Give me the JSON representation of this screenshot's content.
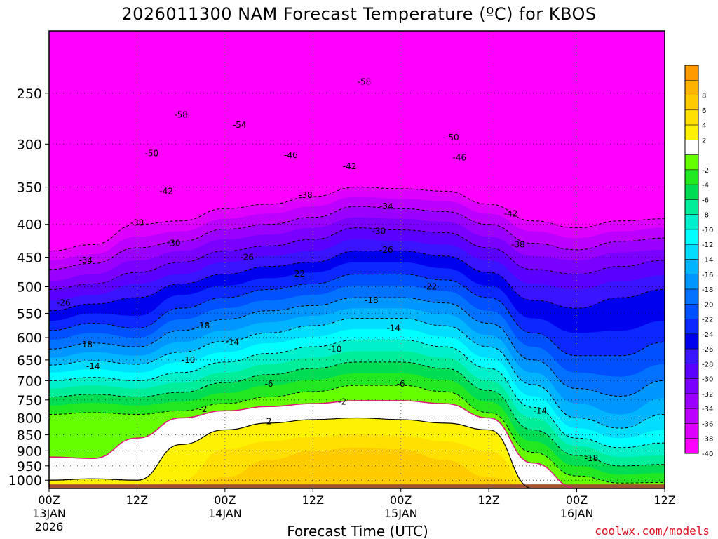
{
  "chart_data": {
    "type": "heatmap",
    "title": "2026011300 NAM Forecast Temperature (ºC) for KBOS",
    "xlabel": "Forecast Time (UTC)",
    "ylabel": "",
    "x_unit": "forecast hour",
    "xlim": [
      0,
      84
    ],
    "y_scale": "log-pressure",
    "ylim": [
      1030,
      200
    ],
    "x_ticks": [
      {
        "hour": 0,
        "label": "00Z",
        "sub1": "13JAN",
        "sub2": "2026"
      },
      {
        "hour": 12,
        "label": "12Z",
        "sub1": "",
        "sub2": ""
      },
      {
        "hour": 24,
        "label": "00Z",
        "sub1": "14JAN",
        "sub2": ""
      },
      {
        "hour": 36,
        "label": "12Z",
        "sub1": "",
        "sub2": ""
      },
      {
        "hour": 48,
        "label": "00Z",
        "sub1": "15JAN",
        "sub2": ""
      },
      {
        "hour": 60,
        "label": "12Z",
        "sub1": "",
        "sub2": ""
      },
      {
        "hour": 72,
        "label": "00Z",
        "sub1": "16JAN",
        "sub2": ""
      },
      {
        "hour": 84,
        "label": "12Z",
        "sub1": "",
        "sub2": ""
      }
    ],
    "y_ticks": [
      250,
      300,
      350,
      400,
      450,
      500,
      550,
      600,
      650,
      700,
      750,
      800,
      850,
      900,
      950,
      1000
    ],
    "grid": true,
    "legend_placement": "right",
    "legend": {
      "levels": [
        {
          "label": "",
          "color": "#ff9a00"
        },
        {
          "label": "8",
          "color": "#ffb400"
        },
        {
          "label": "6",
          "color": "#ffcc00"
        },
        {
          "label": "4",
          "color": "#ffe000"
        },
        {
          "label": "2",
          "color": "#fff200"
        },
        {
          "label": "",
          "color": "#ffffff"
        },
        {
          "label": "-2",
          "color": "#66ff00"
        },
        {
          "label": "-4",
          "color": "#22e822"
        },
        {
          "label": "-6",
          "color": "#00dd55"
        },
        {
          "label": "-8",
          "color": "#00ee99"
        },
        {
          "label": "-10",
          "color": "#00f0cc"
        },
        {
          "label": "-12",
          "color": "#00ffff"
        },
        {
          "label": "-14",
          "color": "#00ddff"
        },
        {
          "label": "-16",
          "color": "#00b4ff"
        },
        {
          "label": "-18",
          "color": "#0096ff"
        },
        {
          "label": "-20",
          "color": "#0072ff"
        },
        {
          "label": "-22",
          "color": "#0050ff"
        },
        {
          "label": "-24",
          "color": "#0a28ff"
        },
        {
          "label": "-26",
          "color": "#0000ee"
        },
        {
          "label": "-28",
          "color": "#3a14ff"
        },
        {
          "label": "-30",
          "color": "#5a00ff"
        },
        {
          "label": "-32",
          "color": "#7a00ff"
        },
        {
          "label": "-34",
          "color": "#9a00ff"
        },
        {
          "label": "-36",
          "color": "#bb00ff"
        },
        {
          "label": "-38",
          "color": "#dd00ff"
        },
        {
          "label": "-40",
          "color": "#ff00ff"
        }
      ]
    },
    "contour_labels": [
      {
        "text": "-58",
        "hour": 18,
        "p": 270
      },
      {
        "text": "-54",
        "hour": 26,
        "p": 280
      },
      {
        "text": "-58",
        "hour": 43,
        "p": 240
      },
      {
        "text": "-50",
        "hour": 14,
        "p": 310
      },
      {
        "text": "-46",
        "hour": 33,
        "p": 312
      },
      {
        "text": "-42",
        "hour": 41,
        "p": 325
      },
      {
        "text": "-50",
        "hour": 55,
        "p": 293
      },
      {
        "text": "-46",
        "hour": 56,
        "p": 315
      },
      {
        "text": "-42",
        "hour": 16,
        "p": 355
      },
      {
        "text": "-38",
        "hour": 35,
        "p": 360
      },
      {
        "text": "-34",
        "hour": 46,
        "p": 375
      },
      {
        "text": "-42",
        "hour": 63,
        "p": 385
      },
      {
        "text": "-38",
        "hour": 12,
        "p": 398
      },
      {
        "text": "-30",
        "hour": 17,
        "p": 428
      },
      {
        "text": "-30",
        "hour": 45,
        "p": 410
      },
      {
        "text": "-38",
        "hour": 64,
        "p": 430
      },
      {
        "text": "-34",
        "hour": 5,
        "p": 455
      },
      {
        "text": "-26",
        "hour": 27,
        "p": 450
      },
      {
        "text": "-26",
        "hour": 46,
        "p": 438
      },
      {
        "text": "-22",
        "hour": 34,
        "p": 477
      },
      {
        "text": "-22",
        "hour": 52,
        "p": 500
      },
      {
        "text": "-26",
        "hour": 2,
        "p": 530
      },
      {
        "text": "-18",
        "hour": 44,
        "p": 525
      },
      {
        "text": "-18",
        "hour": 21,
        "p": 575
      },
      {
        "text": "-14",
        "hour": 47,
        "p": 580
      },
      {
        "text": "-14",
        "hour": 25,
        "p": 610
      },
      {
        "text": "-18",
        "hour": 5,
        "p": 615
      },
      {
        "text": "-10",
        "hour": 39,
        "p": 625
      },
      {
        "text": "-14",
        "hour": 6,
        "p": 665
      },
      {
        "text": "-10",
        "hour": 19,
        "p": 650
      },
      {
        "text": "-6",
        "hour": 30,
        "p": 708
      },
      {
        "text": "-6",
        "hour": 48,
        "p": 708
      },
      {
        "text": "-2",
        "hour": 21,
        "p": 775
      },
      {
        "text": "-2",
        "hour": 40,
        "p": 755
      },
      {
        "text": "2",
        "hour": 30,
        "p": 810
      },
      {
        "text": "-14",
        "hour": 67,
        "p": 780
      },
      {
        "text": "-18",
        "hour": 74,
        "p": 925
      }
    ]
  },
  "credit": "coolwx.com/models"
}
